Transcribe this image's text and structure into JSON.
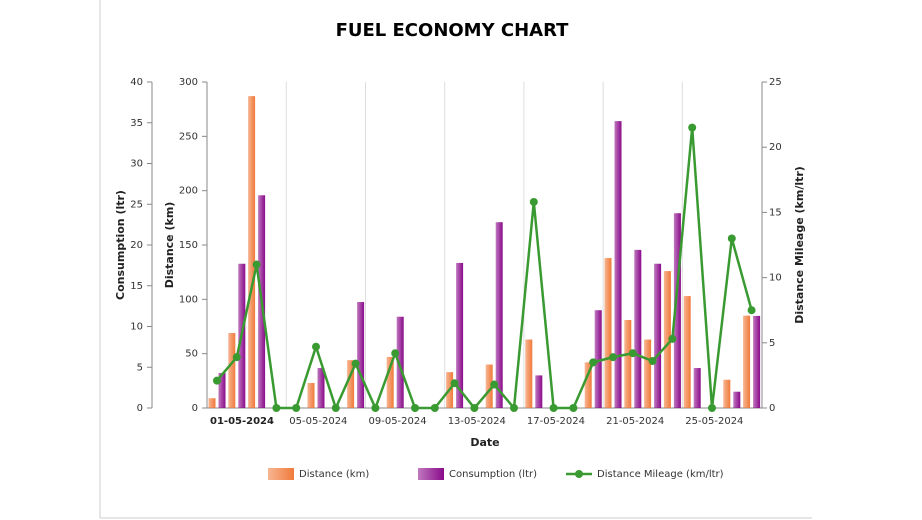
{
  "chart_data": {
    "type": "bar-line",
    "title": "FUEL ECONOMY CHART",
    "x_label": "Date",
    "categories": [
      "01-05-2024",
      null,
      null,
      null,
      "05-05-2024",
      null,
      null,
      null,
      "09-05-2024",
      null,
      null,
      null,
      "13-05-2024",
      null,
      null,
      null,
      "17-05-2024",
      null,
      null,
      null,
      "21-05-2024",
      null,
      null,
      null,
      "25-05-2024",
      null,
      null,
      null
    ],
    "series": [
      {
        "name": "Distance (km)",
        "type": "bar",
        "axis": "y2",
        "color": "#f07a3a",
        "values": [
          9,
          69,
          287,
          0,
          0,
          23,
          0,
          44,
          0,
          47,
          0,
          0,
          33,
          0,
          40,
          0,
          63,
          0,
          0,
          42,
          138,
          81,
          63,
          126,
          103,
          0,
          26,
          85
        ]
      },
      {
        "name": "Consumption (ltr)",
        "type": "bar",
        "axis": "y",
        "color": "#8a0a8a",
        "values": [
          4.3,
          17.7,
          26.1,
          0,
          0,
          4.9,
          0,
          13,
          0,
          11.2,
          0,
          0,
          17.8,
          0,
          22.8,
          0,
          4,
          0,
          0,
          12,
          35.2,
          19.4,
          17.7,
          23.9,
          4.9,
          0,
          2,
          11.3
        ]
      },
      {
        "name": "Distance Mileage (km/ltr)",
        "type": "line",
        "axis": "y3",
        "color": "#3a9a32",
        "values": [
          2.1,
          3.9,
          11,
          0,
          0,
          4.7,
          0,
          3.4,
          0,
          4.2,
          0,
          0,
          1.9,
          0,
          1.8,
          0,
          15.8,
          0,
          0,
          3.5,
          3.9,
          4.2,
          3.6,
          5.3,
          21.5,
          0,
          13,
          7.5
        ]
      }
    ],
    "y_label": "Consumption (ltr)",
    "ylim": [
      0,
      40
    ],
    "yticks": [
      0,
      5,
      10,
      15,
      20,
      25,
      30,
      35,
      40
    ],
    "y2_label": "Distance (km)",
    "y2lim": [
      0,
      300
    ],
    "y2ticks": [
      0,
      50,
      100,
      150,
      200,
      250,
      300
    ],
    "y3_label": "Distance Mileage (km/ltr)",
    "y3lim": [
      0,
      25
    ],
    "y3ticks": [
      0,
      5,
      10,
      15,
      20,
      25
    ],
    "grid": true
  }
}
